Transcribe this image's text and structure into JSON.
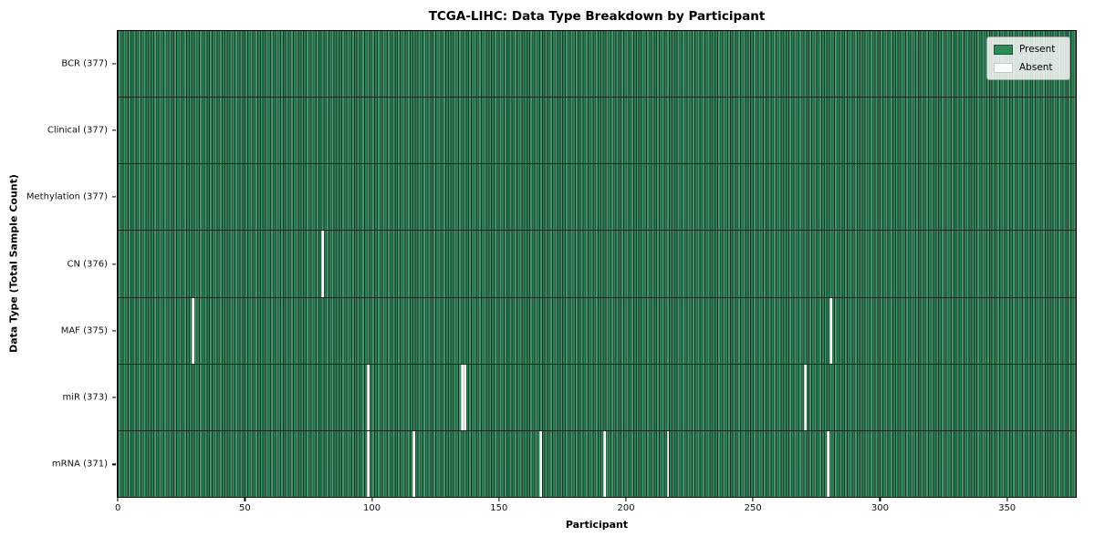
{
  "title": "TCGA-LIHC: Data Type Breakdown by Participant",
  "colors": {
    "present": "#2e8b57",
    "absent": "#ffffff",
    "cell_grid_line": "#123522",
    "row_divider": "#0f2a1a",
    "axes_border": "#000000",
    "legend_border": "#9a9a9a"
  },
  "legend": {
    "present_label": "Present",
    "absent_label": "Absent"
  },
  "chart_data": {
    "type": "heatmap",
    "title": "TCGA-LIHC: Data Type Breakdown by Participant",
    "xlabel": "Participant",
    "ylabel": "Data Type (Total Sample Count)",
    "n_participants": 377,
    "x_ticks": [
      0,
      50,
      100,
      150,
      200,
      250,
      300,
      350
    ],
    "xlim": [
      0,
      377
    ],
    "grid": false,
    "legend_position": "upper right",
    "value_encoding": {
      "present": 1,
      "absent": 0
    },
    "rows": [
      {
        "label": "BCR (377)",
        "data_type": "BCR",
        "present_count": 377,
        "absent_participants": []
      },
      {
        "label": "Clinical (377)",
        "data_type": "Clinical",
        "present_count": 377,
        "absent_participants": []
      },
      {
        "label": "Methylation (377)",
        "data_type": "Methylation",
        "present_count": 377,
        "absent_participants": []
      },
      {
        "label": "CN (376)",
        "data_type": "CN",
        "present_count": 376,
        "absent_participants": [
          80
        ]
      },
      {
        "label": "MAF (375)",
        "data_type": "MAF",
        "present_count": 375,
        "absent_participants": [
          29,
          280
        ]
      },
      {
        "label": "miR (373)",
        "data_type": "miR",
        "present_count": 373,
        "absent_participants": [
          98,
          135,
          136,
          270
        ]
      },
      {
        "label": "mRNA (371)",
        "data_type": "mRNA",
        "present_count": 371,
        "absent_participants": [
          98,
          116,
          166,
          191,
          216,
          279
        ]
      }
    ],
    "legend_entries": [
      {
        "label": "Present",
        "color": "#2e8b57"
      },
      {
        "label": "Absent",
        "color": "#ffffff"
      }
    ]
  }
}
